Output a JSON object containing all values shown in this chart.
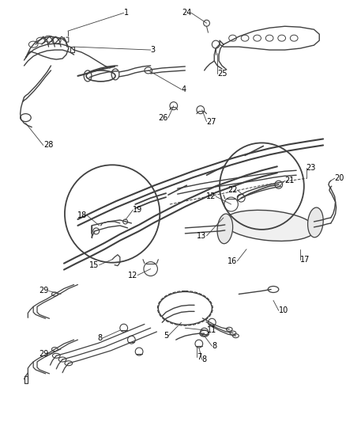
{
  "bg_color": "#ffffff",
  "line_color": "#404040",
  "label_color": "#000000",
  "figsize": [
    4.38,
    5.33
  ],
  "dpi": 100,
  "label_fontsize": 7.0
}
